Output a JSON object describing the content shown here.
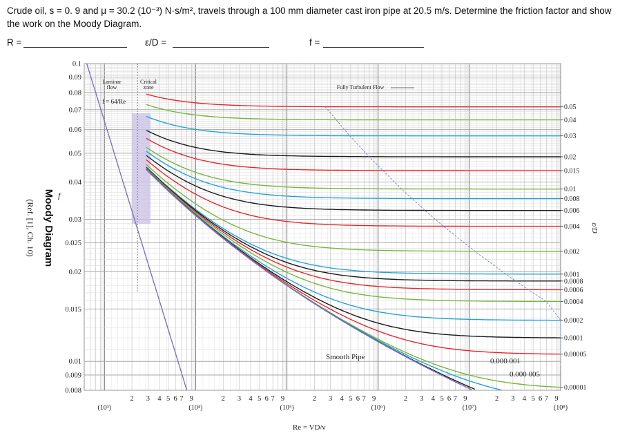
{
  "problem": {
    "line1": "Crude oil, s = 0. 9 and μ = 30.2 (10⁻³) N·s/m², travels through a 100 mm diameter cast iron pipe at 20.5 m/s.  Determine the friction factor and show",
    "line2": "the work on the Moody Diagram."
  },
  "answers": {
    "r_label": "R =",
    "eps_label": "ε/D =",
    "f_label": "f ="
  },
  "chart_title": "Moody Diagram",
  "chart_ref": "(Ref. [1], Ch. 10)",
  "colors": {
    "red": "#e8262b",
    "green": "#74b83a",
    "blue": "#23a3dc",
    "black": "#1a1a1a",
    "smooth": "#7e73b8",
    "grid": "#bdbdbd",
    "critical_zone": "#c9c0e6"
  },
  "chart_data": {
    "type": "line",
    "xscale": "log",
    "yscale": "log",
    "xlim": [
      600,
      100000000
    ],
    "ylim": [
      0.008,
      0.1
    ],
    "xlabel": "Re = VD/ν",
    "ylabel": "f",
    "right_label": "ε/D",
    "grid": true,
    "y_ticks": [
      {
        "v": 0.1,
        "label": "0.1"
      },
      {
        "v": 0.09,
        "label": "0.09"
      },
      {
        "v": 0.08,
        "label": "0.08"
      },
      {
        "v": 0.07,
        "label": "0.07"
      },
      {
        "v": 0.06,
        "label": "0.06"
      },
      {
        "v": 0.05,
        "label": "0.05"
      },
      {
        "v": 0.04,
        "label": "0.04"
      },
      {
        "v": 0.03,
        "label": "0.03"
      },
      {
        "v": 0.025,
        "label": "0.025"
      },
      {
        "v": 0.02,
        "label": "0.02"
      },
      {
        "v": 0.015,
        "label": "0.015"
      },
      {
        "v": 0.01,
        "label": "0.01"
      },
      {
        "v": 0.009,
        "label": "0.009"
      },
      {
        "v": 0.008,
        "label": "0.008"
      }
    ],
    "x_decades": [
      {
        "label": "(10³)",
        "v": 1000
      },
      {
        "label": "(10⁴)",
        "v": 10000
      },
      {
        "label": "(10⁵)",
        "v": 100000
      },
      {
        "label": "(10⁶)",
        "v": 1000000
      },
      {
        "label": "(10⁷)",
        "v": 10000000
      },
      {
        "label": "(10⁸)",
        "v": 100000000
      }
    ],
    "x_minor_labels": [
      "2",
      "3",
      "4",
      "5",
      "6",
      "7",
      "9"
    ],
    "annotations": {
      "laminar": "Laminar flow",
      "laminar_eq": "f = 64/Re",
      "critical": "Critical zone",
      "fully_turbulent": "Fully Turbulent Flow",
      "smooth_pipe": "Smooth Pipe",
      "rr_000001": "0.000 001",
      "rr_0000005": "0.000 005"
    },
    "laminar": {
      "re_start": 600,
      "re_end": 2300
    },
    "transition_re": 2300,
    "series": [
      {
        "rel_rough": 0.05,
        "label": "0.05",
        "color": "red"
      },
      {
        "rel_rough": 0.04,
        "label": "0.04",
        "color": "green"
      },
      {
        "rel_rough": 0.03,
        "label": "0.03",
        "color": "blue"
      },
      {
        "rel_rough": 0.02,
        "label": "0.02",
        "color": "black"
      },
      {
        "rel_rough": 0.015,
        "label": "0.015",
        "color": "red"
      },
      {
        "rel_rough": 0.01,
        "label": "0.01",
        "color": "green"
      },
      {
        "rel_rough": 0.008,
        "label": "0.008",
        "color": "blue"
      },
      {
        "rel_rough": 0.006,
        "label": "0.006",
        "color": "black"
      },
      {
        "rel_rough": 0.004,
        "label": "0.004",
        "color": "red"
      },
      {
        "rel_rough": 0.002,
        "label": "0.002",
        "color": "green"
      },
      {
        "rel_rough": 0.001,
        "label": "0.001",
        "color": "blue"
      },
      {
        "rel_rough": 0.0008,
        "label": "0.0008",
        "color": "black"
      },
      {
        "rel_rough": 0.0006,
        "label": "0.0006",
        "color": "red"
      },
      {
        "rel_rough": 0.0004,
        "label": "0.0004",
        "color": "green"
      },
      {
        "rel_rough": 0.0002,
        "label": "0.0002",
        "color": "blue"
      },
      {
        "rel_rough": 0.0001,
        "label": "0.0001",
        "color": "black"
      },
      {
        "rel_rough": 5e-05,
        "label": "0.00005",
        "color": "red"
      },
      {
        "rel_rough": 1e-05,
        "label": "0.00001",
        "color": "green"
      },
      {
        "rel_rough": 5e-06,
        "label": "",
        "color": "blue"
      },
      {
        "rel_rough": 1e-06,
        "label": "",
        "color": "black"
      }
    ],
    "smooth_pipe": {
      "color": "smooth"
    }
  }
}
